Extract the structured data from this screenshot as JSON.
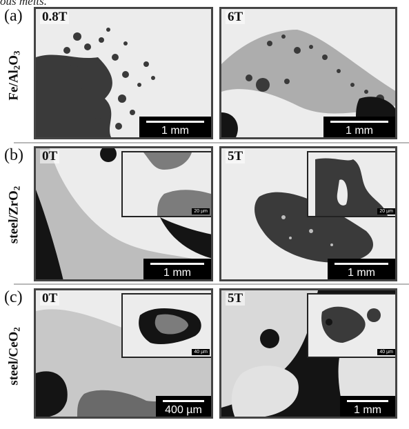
{
  "figure": {
    "top_text": "ous melts.",
    "rows": [
      {
        "letter": "(a)",
        "sample": "Fe/Al",
        "sample_sub1": "2",
        "sample_mid": "O",
        "sample_sub2": "3",
        "panels": [
          {
            "field": "0.8T",
            "scale": "1 mm",
            "inset_scale": ""
          },
          {
            "field": "6T",
            "scale": "1 mm",
            "inset_scale": ""
          }
        ]
      },
      {
        "letter": "(b)",
        "sample": "steel/ZrO",
        "sample_sub1": "2",
        "panels": [
          {
            "field": "0T",
            "scale": "1 mm",
            "inset_scale": "20 µm"
          },
          {
            "field": "5T",
            "scale": "1 mm",
            "inset_scale": "20 µm"
          }
        ]
      },
      {
        "letter": "(c)",
        "sample": "steel/CeO",
        "sample_sub1": "2",
        "panels": [
          {
            "field": "0T",
            "scale": "400 µm",
            "inset_scale": "40 µm"
          },
          {
            "field": "5T",
            "scale": "1 mm",
            "inset_scale": "40 µm"
          }
        ]
      }
    ]
  },
  "colors": {
    "background_metal": "#e9e9e9",
    "oxide_dark": "#3a3a3a",
    "void_black": "#141414",
    "separator": "#b8b8b8"
  }
}
